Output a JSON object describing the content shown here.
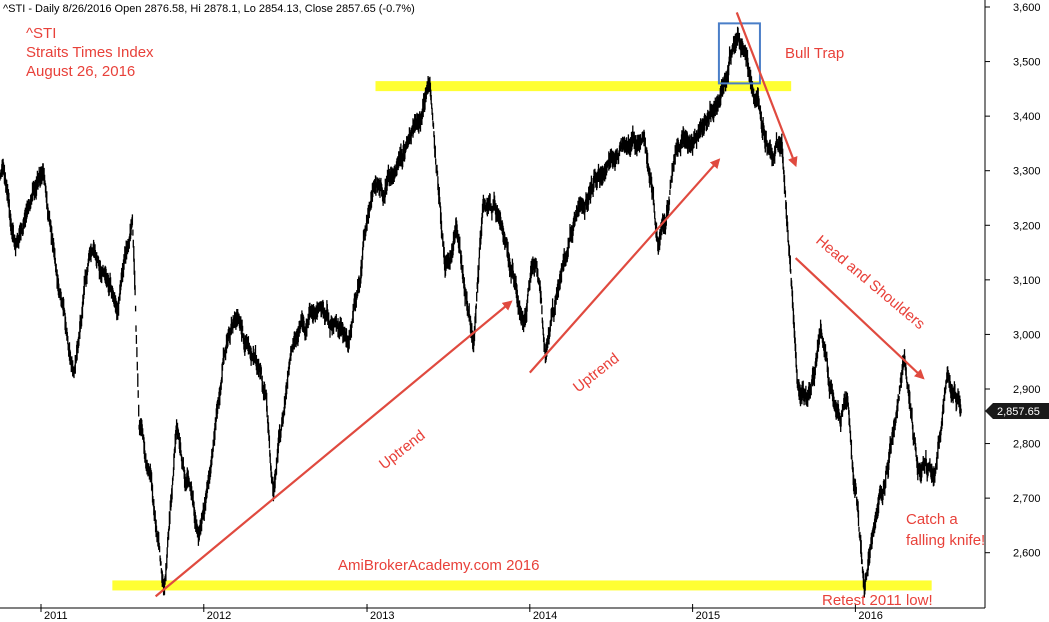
{
  "header": "^STI - Daily 8/26/2016 Open 2876.58, Hi 2878.1, Lo 2854.13, Close 2857.65 (-0.7%)",
  "title_lines": [
    "^STI",
    "Straits Times Index",
    "August 26, 2016"
  ],
  "watermark": "AmiBrokerAcademy.com 2016",
  "annotations": {
    "bull_trap": "Bull Trap",
    "uptrend": "Uptrend",
    "head_shoulders": "Head and Shoulders",
    "catch_knife_1": "Catch a",
    "catch_knife_2": "falling knife!",
    "retest": "Retest 2011 low!"
  },
  "last_price_label": "2,857.65",
  "colors": {
    "annotation": "#e8413a",
    "arrow": "#e04a3f",
    "highlight": "#ffff33",
    "box": "#4a7ec8",
    "price": "#000000",
    "last_bg": "#1a1a1a"
  },
  "chart_data": {
    "type": "line",
    "title": "^STI",
    "series_points": [
      [
        "2010-09-01",
        3190
      ],
      [
        "2010-10-08",
        3310
      ],
      [
        "2010-11-05",
        3160
      ],
      [
        "2010-12-01",
        3230
      ],
      [
        "2011-01-06",
        3300
      ],
      [
        "2011-02-10",
        3080
      ],
      [
        "2011-03-16",
        2930
      ],
      [
        "2011-04-20",
        3150
      ],
      [
        "2011-05-25",
        3110
      ],
      [
        "2011-06-22",
        3040
      ],
      [
        "2011-07-25",
        3210
      ],
      [
        "2011-08-09",
        2830
      ],
      [
        "2011-09-05",
        2740
      ],
      [
        "2011-10-04",
        2530
      ],
      [
        "2011-11-01",
        2830
      ],
      [
        "2011-12-20",
        2630
      ],
      [
        "2012-01-16",
        2750
      ],
      [
        "2012-02-14",
        2960
      ],
      [
        "2012-03-15",
        3030
      ],
      [
        "2012-04-10",
        2980
      ],
      [
        "2012-05-20",
        2890
      ],
      [
        "2012-06-05",
        2710
      ],
      [
        "2012-07-15",
        2970
      ],
      [
        "2012-09-15",
        3050
      ],
      [
        "2012-10-25",
        3020
      ],
      [
        "2012-11-20",
        2980
      ],
      [
        "2013-01-15",
        3270
      ],
      [
        "2013-03-01",
        3290
      ],
      [
        "2013-04-15",
        3380
      ],
      [
        "2013-05-22",
        3460
      ],
      [
        "2013-06-25",
        3120
      ],
      [
        "2013-07-20",
        3200
      ],
      [
        "2013-08-28",
        2980
      ],
      [
        "2013-09-18",
        3240
      ],
      [
        "2013-10-22",
        3220
      ],
      [
        "2013-12-18",
        3020
      ],
      [
        "2014-01-15",
        3130
      ],
      [
        "2014-02-05",
        2960
      ],
      [
        "2014-03-10",
        3100
      ],
      [
        "2014-04-15",
        3220
      ],
      [
        "2014-06-20",
        3300
      ],
      [
        "2014-07-30",
        3350
      ],
      [
        "2014-09-15",
        3360
      ],
      [
        "2014-10-16",
        3160
      ],
      [
        "2014-11-25",
        3340
      ],
      [
        "2015-01-20",
        3380
      ],
      [
        "2015-02-25",
        3420
      ],
      [
        "2015-04-13",
        3550
      ],
      [
        "2015-05-15",
        3450
      ],
      [
        "2015-06-30",
        3320
      ],
      [
        "2015-07-20",
        3350
      ],
      [
        "2015-08-24",
        2910
      ],
      [
        "2015-09-15",
        2880
      ],
      [
        "2015-10-15",
        3010
      ],
      [
        "2015-11-15",
        2870
      ],
      [
        "2015-12-15",
        2880
      ],
      [
        "2016-01-21",
        2530
      ],
      [
        "2016-02-15",
        2660
      ],
      [
        "2016-03-31",
        2840
      ],
      [
        "2016-04-20",
        2960
      ],
      [
        "2016-05-20",
        2750
      ],
      [
        "2016-06-27",
        2740
      ],
      [
        "2016-07-25",
        2930
      ],
      [
        "2016-08-26",
        2857.65
      ]
    ],
    "y_range": [
      2500,
      3600
    ],
    "x_range": [
      "2010-09-01",
      "2016-09-15"
    ],
    "y_ticks": [
      2600,
      2700,
      2800,
      2900,
      3000,
      3100,
      3200,
      3300,
      3400,
      3500,
      3600
    ],
    "y_tick_labels": [
      "2,600",
      "2,700",
      "2,800",
      "2,900",
      "3,000",
      "3,100",
      "3,200",
      "3,300",
      "3,400",
      "3,500",
      "3,600"
    ],
    "x_ticks": [
      "2011-01-01",
      "2012-01-01",
      "2013-01-01",
      "2014-01-01",
      "2015-01-01",
      "2016-01-01"
    ],
    "x_tick_labels": [
      "2011",
      "2012",
      "2013",
      "2014",
      "2015",
      "2016"
    ],
    "highlight_levels": [
      {
        "value": 3455,
        "from": "2013-01-20",
        "to": "2015-08-10"
      },
      {
        "value": 2540,
        "from": "2011-06-10",
        "to": "2016-06-20"
      }
    ],
    "trend_arrows": [
      {
        "from": [
          "2011-09-15",
          2520
        ],
        "to": [
          "2013-11-20",
          3060
        ]
      },
      {
        "from": [
          "2014-01-01",
          2930
        ],
        "to": [
          "2015-03-01",
          3320
        ]
      },
      {
        "from": [
          "2015-04-10",
          3590
        ],
        "to": [
          "2015-08-20",
          3310
        ]
      },
      {
        "from": [
          "2015-08-20",
          3140
        ],
        "to": [
          "2016-06-01",
          2920
        ]
      }
    ],
    "box": {
      "from": "2015-03-01",
      "to": "2015-06-01",
      "low": 3460,
      "high": 3570
    },
    "grid": false,
    "last_value": 2857.65
  }
}
